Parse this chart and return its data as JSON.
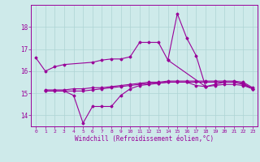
{
  "xlabel": "Windchill (Refroidissement éolien,°C)",
  "background_color": "#ceeaea",
  "grid_color": "#aed4d4",
  "line_color": "#990099",
  "ylim": [
    13.5,
    19.0
  ],
  "yticks": [
    14,
    15,
    16,
    17,
    18
  ],
  "xlim": [
    -0.5,
    23.5
  ],
  "series_A_x": [
    0,
    1,
    2,
    3,
    6,
    7,
    8,
    9,
    10,
    11,
    12,
    13,
    14,
    18,
    19,
    20,
    21,
    22,
    23
  ],
  "series_A_y": [
    16.6,
    16.0,
    16.2,
    16.3,
    16.4,
    16.5,
    16.55,
    16.55,
    16.65,
    17.3,
    17.3,
    17.3,
    16.5,
    15.3,
    15.4,
    15.5,
    15.5,
    15.4,
    15.2
  ],
  "series_B_x": [
    1,
    2,
    3,
    4,
    5,
    6,
    7,
    8,
    9,
    10,
    11,
    12,
    13,
    14,
    15,
    16,
    17,
    18,
    19,
    20,
    21,
    22,
    23
  ],
  "series_B_y": [
    15.1,
    15.1,
    15.1,
    14.9,
    13.65,
    14.4,
    14.4,
    14.4,
    14.9,
    15.2,
    15.35,
    15.4,
    15.45,
    15.5,
    15.5,
    15.5,
    15.35,
    15.3,
    15.35,
    15.4,
    15.4,
    15.35,
    15.2
  ],
  "series_C_x": [
    1,
    2,
    3,
    4,
    5,
    6,
    7,
    8,
    9,
    10,
    11,
    12,
    13,
    14,
    15,
    16,
    17,
    18,
    19,
    20,
    21,
    22,
    23
  ],
  "series_C_y": [
    15.1,
    15.1,
    15.1,
    15.1,
    15.1,
    15.15,
    15.2,
    15.25,
    15.3,
    15.35,
    15.4,
    15.45,
    15.45,
    15.5,
    15.5,
    15.5,
    15.5,
    15.5,
    15.5,
    15.5,
    15.5,
    15.45,
    15.2
  ],
  "series_D_x": [
    1,
    2,
    3,
    4,
    5,
    6,
    7,
    8,
    9,
    10,
    11,
    12,
    13,
    14,
    15,
    16,
    17,
    18,
    19,
    20,
    21,
    22,
    23
  ],
  "series_D_y": [
    15.15,
    15.15,
    15.15,
    15.2,
    15.2,
    15.25,
    15.25,
    15.3,
    15.35,
    15.4,
    15.45,
    15.5,
    15.5,
    15.55,
    15.55,
    15.55,
    15.55,
    15.55,
    15.55,
    15.55,
    15.55,
    15.5,
    15.25
  ],
  "series_E_x": [
    14,
    15,
    16,
    17,
    18
  ],
  "series_E_y": [
    16.5,
    18.6,
    17.5,
    16.7,
    15.3
  ]
}
